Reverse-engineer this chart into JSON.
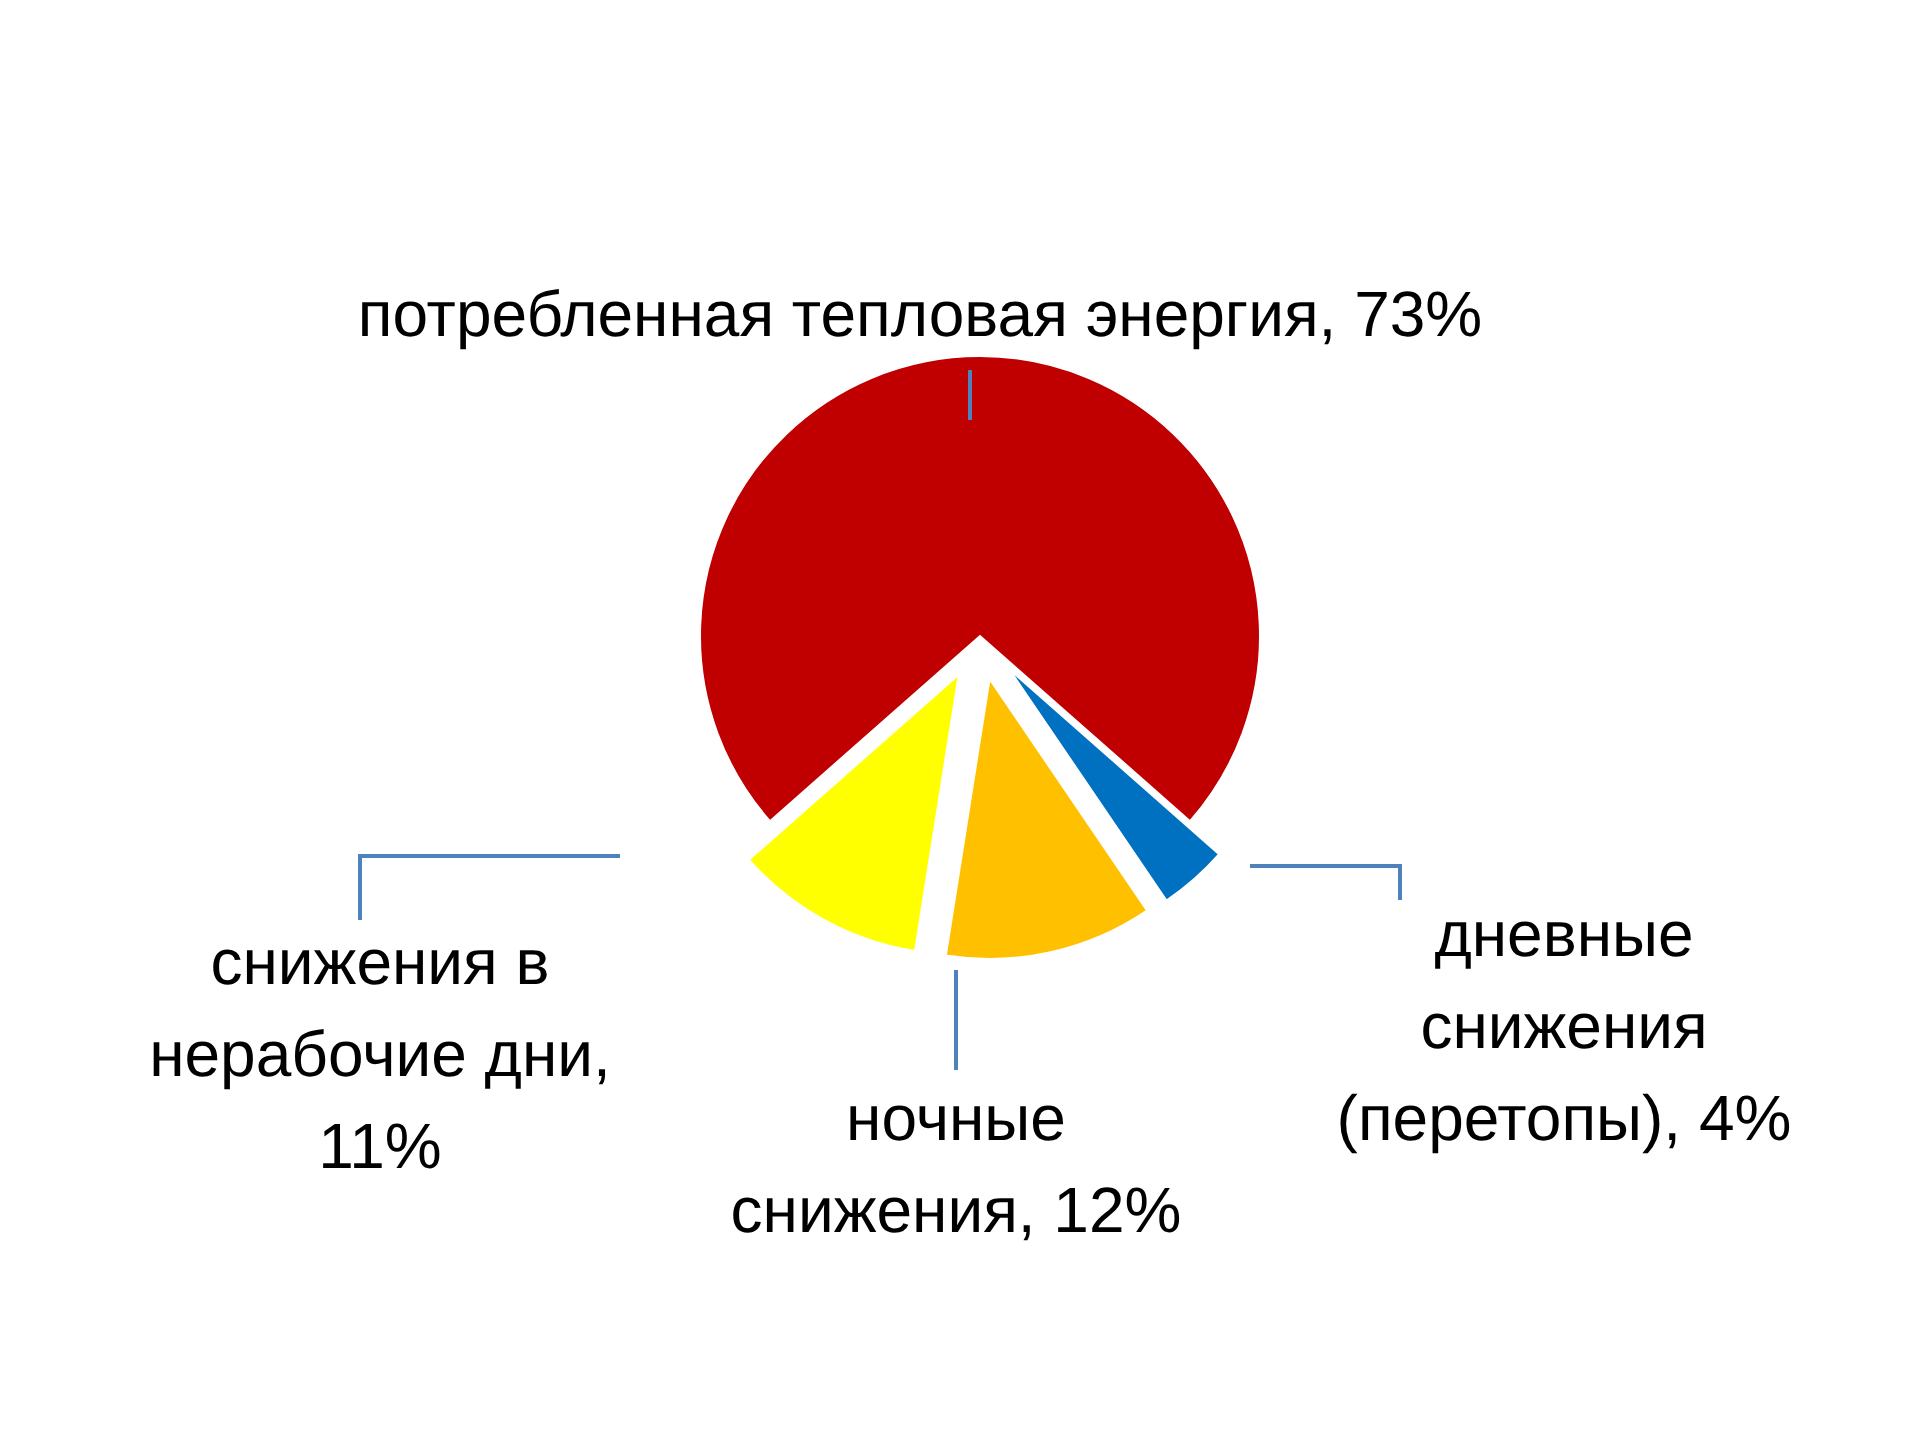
{
  "chart_data": {
    "type": "pie",
    "categories": [
      "потребленная тепловая энергия, 73%",
      "дневные снижения (перетопы), 4%",
      "ночные снижения, 12%",
      "снижения в нерабочие дни, 11%"
    ],
    "values": [
      73,
      4,
      12,
      11
    ],
    "colors": [
      "#c00000",
      "#0070c0",
      "#ffc000",
      "#ffff00"
    ]
  }
}
